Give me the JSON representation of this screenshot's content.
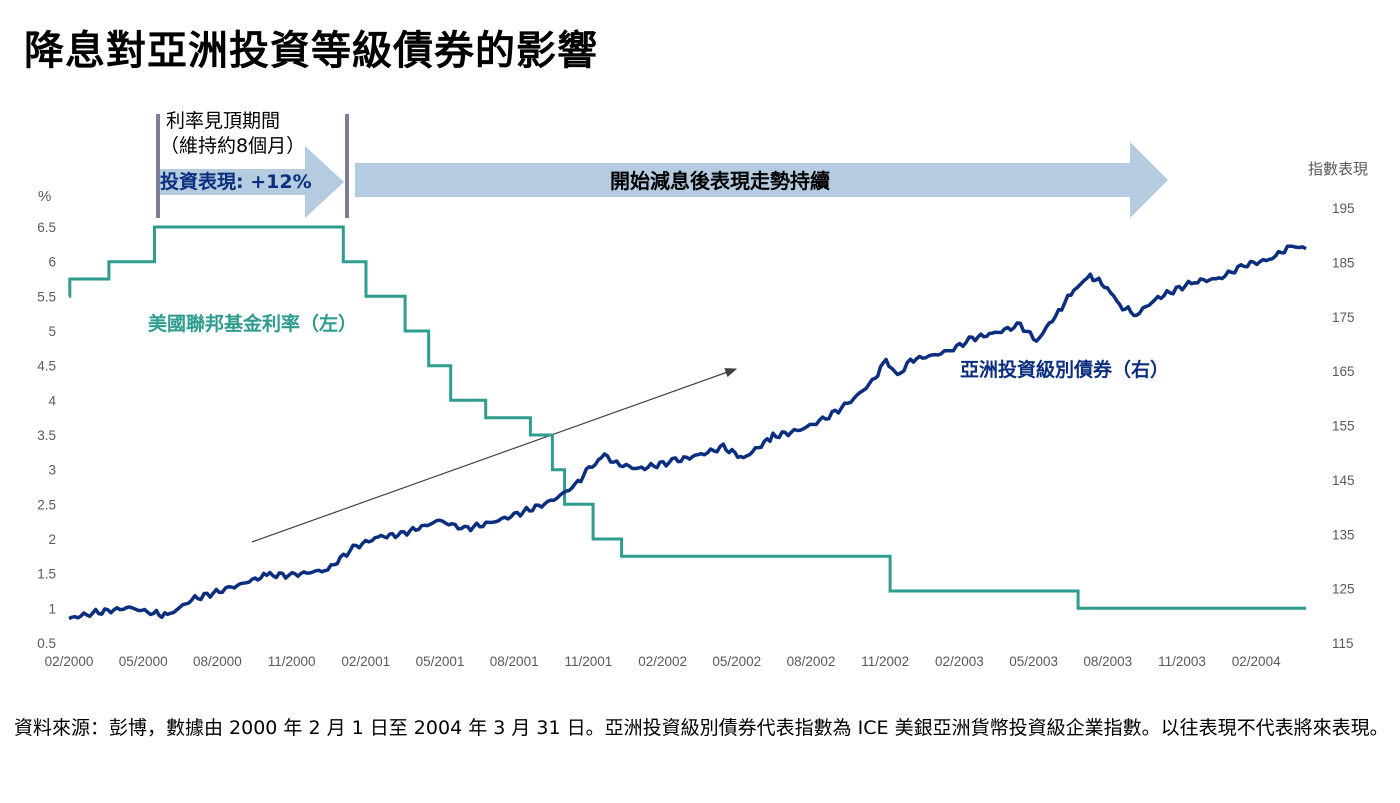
{
  "title": "降息對亞洲投資等級債券的影響",
  "source_note": "資料來源：彭博，數據由 2000 年 2 月 1 日至 2004 年 3 月 31 日。亞洲投資級別債券代表指數為 ICE 美銀亞洲貨幣投資級企業指數。以往表現不代表將來表現。",
  "colors": {
    "fed_rate": "#2e9c8e",
    "asia_ig": "#0b2f7e",
    "arrow_fill": "#b4cbe0",
    "marker": "#7b7f98",
    "trend_arrow": "#404040"
  },
  "chart_data": {
    "type": "line",
    "x_tick_labels": [
      "02/2000",
      "05/2000",
      "08/2000",
      "11/2000",
      "02/2001",
      "05/2001",
      "08/2001",
      "11/2001",
      "02/2002",
      "05/2002",
      "08/2002",
      "11/2002",
      "02/2003",
      "05/2003",
      "08/2003",
      "11/2003",
      "02/2004"
    ],
    "xlim": [
      "2000-02-01",
      "2004-03-31"
    ],
    "y_left": {
      "unit_label": "%",
      "ylim": [
        0.5,
        6.5
      ],
      "ticks": [
        "0.5",
        "1",
        "1.5",
        "2",
        "2.5",
        "3",
        "3.5",
        "4",
        "4.5",
        "5",
        "5.5",
        "6",
        "6.5"
      ]
    },
    "y_right": {
      "unit_label": "指數表現",
      "ylim": [
        115,
        195
      ],
      "ticks": [
        "115",
        "125",
        "135",
        "145",
        "155",
        "165",
        "175",
        "185",
        "195"
      ]
    },
    "series": [
      {
        "name": "美國聯邦基金利率（左）",
        "axis": "left",
        "step": true,
        "points": [
          [
            "2000-02-01",
            5.5
          ],
          [
            "2000-02-02",
            5.75
          ],
          [
            "2000-03-21",
            6.0
          ],
          [
            "2000-05-16",
            6.5
          ],
          [
            "2001-01-03",
            6.0
          ],
          [
            "2001-01-31",
            5.5
          ],
          [
            "2001-03-20",
            5.0
          ],
          [
            "2001-04-18",
            4.5
          ],
          [
            "2001-05-15",
            4.0
          ],
          [
            "2001-06-27",
            3.75
          ],
          [
            "2001-08-21",
            3.5
          ],
          [
            "2001-09-17",
            3.0
          ],
          [
            "2001-10-02",
            2.5
          ],
          [
            "2001-11-06",
            2.0
          ],
          [
            "2001-12-11",
            1.75
          ],
          [
            "2002-11-06",
            1.25
          ],
          [
            "2003-06-25",
            1.0
          ],
          [
            "2004-03-31",
            1.0
          ]
        ]
      },
      {
        "name": "亞洲投資級別債券（右）",
        "axis": "right",
        "points": [
          [
            "2000-02-01",
            119.5
          ],
          [
            "2000-03-01",
            120.5
          ],
          [
            "2000-04-15",
            121.5
          ],
          [
            "2000-05-15",
            120.5
          ],
          [
            "2000-06-01",
            120.0
          ],
          [
            "2000-07-01",
            123.0
          ],
          [
            "2000-08-15",
            125.0
          ],
          [
            "2000-10-01",
            127.5
          ],
          [
            "2000-11-01",
            127.5
          ],
          [
            "2000-12-15",
            128.5
          ],
          [
            "2001-01-15",
            132.5
          ],
          [
            "2001-02-15",
            134.5
          ],
          [
            "2001-03-15",
            135.0
          ],
          [
            "2001-05-01",
            137.5
          ],
          [
            "2001-06-01",
            136.0
          ],
          [
            "2001-07-01",
            137.0
          ],
          [
            "2001-08-01",
            138.5
          ],
          [
            "2001-09-15",
            141.0
          ],
          [
            "2001-10-15",
            144.0
          ],
          [
            "2001-11-01",
            147.0
          ],
          [
            "2001-11-20",
            149.5
          ],
          [
            "2001-12-05",
            148.0
          ],
          [
            "2002-01-01",
            147.0
          ],
          [
            "2002-02-15",
            148.5
          ],
          [
            "2002-03-15",
            149.5
          ],
          [
            "2002-04-15",
            151.0
          ],
          [
            "2002-05-10",
            149.0
          ],
          [
            "2002-06-15",
            153.0
          ],
          [
            "2002-07-15",
            154.0
          ],
          [
            "2002-08-15",
            156.0
          ],
          [
            "2002-09-15",
            159.0
          ],
          [
            "2002-10-15",
            163.0
          ],
          [
            "2002-11-01",
            167.0
          ],
          [
            "2002-11-15",
            164.0
          ],
          [
            "2002-12-01",
            167.0
          ],
          [
            "2003-01-15",
            168.5
          ],
          [
            "2003-02-15",
            171.0
          ],
          [
            "2003-03-15",
            172.0
          ],
          [
            "2003-04-15",
            173.5
          ],
          [
            "2003-05-05",
            170.5
          ],
          [
            "2003-06-01",
            176.0
          ],
          [
            "2003-06-20",
            180.0
          ],
          [
            "2003-07-10",
            182.5
          ],
          [
            "2003-07-31",
            180.5
          ],
          [
            "2003-08-15",
            177.0
          ],
          [
            "2003-09-05",
            175.5
          ],
          [
            "2003-10-01",
            178.5
          ],
          [
            "2003-11-15",
            181.5
          ],
          [
            "2003-12-15",
            182.0
          ],
          [
            "2004-01-15",
            184.5
          ],
          [
            "2004-02-15",
            185.5
          ],
          [
            "2004-03-01",
            187.0
          ],
          [
            "2004-03-15",
            188.0
          ],
          [
            "2004-03-31",
            187.5
          ]
        ]
      }
    ],
    "annotations": {
      "peak_period_line1": "利率見頂期間",
      "peak_period_line2": "（維持約8個月）",
      "peak_return": "投資表現: +12%",
      "after_cut": "開始減息後表現走勢持續",
      "fed_label": "美國聯邦基金利率（左）",
      "asia_label": "亞洲投資級別債券（右）"
    }
  }
}
